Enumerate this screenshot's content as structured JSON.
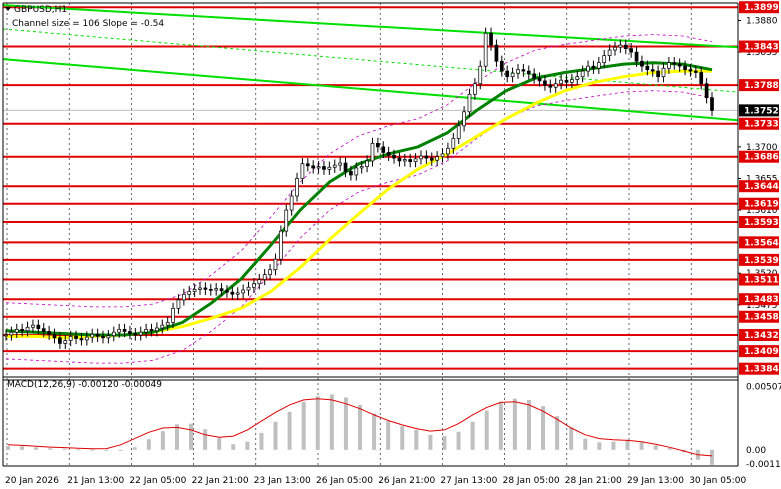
{
  "header": {
    "symbol": "GBPUSD,H1",
    "channel_info": "Channel size = 106 Slope = -0.54",
    "macd_label": "MACD(12,26,9) -0.00120 -0.00049"
  },
  "colors": {
    "background": "#ffffff",
    "level_line": "#e00000",
    "badge_bg": "#e00000",
    "channel": "#00e000",
    "ma_fast": "#008000",
    "ma_slow": "#ffff00",
    "bollinger": "#c000c0",
    "candles": "#000000",
    "macd_hist": "#c0c0c0",
    "macd_signal": "#e00000",
    "current_price_badge": "#000000"
  },
  "chart_data": {
    "type": "candlestick",
    "symbol": "GBPUSD",
    "timeframe": "H1",
    "ylim": [
      1.3375,
      1.3905
    ],
    "y_ticks": [
      "1.3880",
      "1.3835",
      "1.3700",
      "1.3655",
      "1.3610",
      "1.3520",
      "1.3475"
    ],
    "x_ticks": [
      "20 Jan 2026",
      "21 Jan 13:00",
      "22 Jan 05:00",
      "22 Jan 21:00",
      "23 Jan 13:00",
      "26 Jan 05:00",
      "26 Jan 21:00",
      "27 Jan 13:00",
      "28 Jan 05:00",
      "28 Jan 21:00",
      "29 Jan 13:00",
      "30 Jan 05:00"
    ],
    "levels": [
      1.3899,
      1.3843,
      1.3788,
      1.3733,
      1.3686,
      1.3644,
      1.3619,
      1.3593,
      1.3564,
      1.3539,
      1.3511,
      1.3483,
      1.3458,
      1.3432,
      1.3409,
      1.3384
    ],
    "current_price": 1.3752,
    "candles_close": [
      1.3432,
      1.3436,
      1.344,
      1.3438,
      1.3443,
      1.3446,
      1.3441,
      1.3437,
      1.3433,
      1.3428,
      1.342,
      1.3424,
      1.343,
      1.3427,
      1.3425,
      1.3429,
      1.3433,
      1.343,
      1.3428,
      1.3431,
      1.3436,
      1.344,
      1.3437,
      1.3434,
      1.3432,
      1.3436,
      1.344,
      1.3438,
      1.3442,
      1.3446,
      1.345,
      1.347,
      1.3482,
      1.349,
      1.3494,
      1.3497,
      1.3499,
      1.3497,
      1.3496,
      1.3498,
      1.3495,
      1.3493,
      1.349,
      1.3492,
      1.3496,
      1.35,
      1.3505,
      1.3511,
      1.3518,
      1.3525,
      1.354,
      1.358,
      1.361,
      1.363,
      1.3655,
      1.3676,
      1.3673,
      1.367,
      1.3672,
      1.3668,
      1.3671,
      1.3674,
      1.3677,
      1.3665,
      1.366,
      1.367,
      1.3672,
      1.368,
      1.3705,
      1.37,
      1.3692,
      1.3688,
      1.3684,
      1.368,
      1.3682,
      1.3679,
      1.3683,
      1.3687,
      1.3684,
      1.3681,
      1.3686,
      1.369,
      1.3698,
      1.3712,
      1.373,
      1.375,
      1.3775,
      1.379,
      1.3815,
      1.3862,
      1.3845,
      1.3822,
      1.3808,
      1.38,
      1.3805,
      1.381,
      1.3808,
      1.3804,
      1.3798,
      1.3794,
      1.3788,
      1.3785,
      1.379,
      1.3795,
      1.3792,
      1.3796,
      1.38,
      1.3808,
      1.3815,
      1.3812,
      1.382,
      1.383,
      1.3838,
      1.3842,
      1.3845,
      1.384,
      1.3835,
      1.3822,
      1.3815,
      1.381,
      1.3808,
      1.38,
      1.3812,
      1.382,
      1.3818,
      1.3815,
      1.381,
      1.3808,
      1.3806,
      1.379,
      1.377,
      1.3752
    ],
    "ma_fast": [
      1.3438,
      1.3436,
      1.3434,
      1.3432,
      1.3432,
      1.3436,
      1.345,
      1.3478,
      1.3512,
      1.356,
      1.361,
      1.365,
      1.3676,
      1.369,
      1.37,
      1.372,
      1.3752,
      1.378,
      1.3798,
      1.3806,
      1.3812,
      1.3818,
      1.382,
      1.3818,
      1.381
    ],
    "ma_slow": [
      1.343,
      1.343,
      1.3428,
      1.343,
      1.3432,
      1.3436,
      1.3444,
      1.3456,
      1.347,
      1.3494,
      1.3528,
      1.3568,
      1.3605,
      1.364,
      1.3668,
      1.369,
      1.3715,
      1.374,
      1.3762,
      1.378,
      1.3792,
      1.38,
      1.3806,
      1.3808,
      1.3808
    ],
    "channel_lines": [
      {
        "from": [
          0,
          1.3902
        ],
        "to": [
          1,
          1.3842
        ]
      },
      {
        "from": [
          0,
          1.3825
        ],
        "to": [
          1,
          1.3738
        ]
      },
      {
        "from": [
          0,
          1.3868
        ],
        "to": [
          1,
          1.3778
        ]
      }
    ],
    "macd": {
      "y_ticks": [
        "0.00507",
        "0.00",
        "-0.00115"
      ],
      "ylim": [
        -0.0013,
        0.0056
      ],
      "histogram": [
        0.0003,
        0.00028,
        0.0002,
        0.00012,
        8e-05,
        4e-05,
        2e-05,
        0.0,
        -5e-05,
        0.0002,
        0.00085,
        0.0015,
        0.00205,
        0.0021,
        0.00165,
        0.00095,
        0.00045,
        0.00065,
        0.00135,
        0.00225,
        0.00305,
        0.00385,
        0.0043,
        0.00445,
        0.0042,
        0.0036,
        0.0029,
        0.0023,
        0.0019,
        0.0016,
        0.0012,
        0.0011,
        0.00145,
        0.00225,
        0.00315,
        0.00385,
        0.0041,
        0.004,
        0.0035,
        0.0027,
        0.0018,
        0.0009,
        0.0006,
        0.00065,
        0.0008,
        0.0006,
        0.00035,
        0.00015,
        -0.0002,
        -0.0008,
        -0.0012
      ],
      "signal": [
        0.0004,
        0.00035,
        0.00028,
        0.00022,
        0.00018,
        0.00012,
        8e-05,
        0.0001,
        0.0004,
        0.0009,
        0.0014,
        0.00175,
        0.0018,
        0.0016,
        0.0012,
        0.001,
        0.0011,
        0.0016,
        0.0023,
        0.003,
        0.0036,
        0.004,
        0.0041,
        0.004,
        0.0037,
        0.0033,
        0.0028,
        0.00235,
        0.002,
        0.0017,
        0.0015,
        0.0016,
        0.0021,
        0.0028,
        0.0034,
        0.0038,
        0.00385,
        0.0036,
        0.0031,
        0.00245,
        0.00175,
        0.0012,
        0.0009,
        0.0008,
        0.00075,
        0.00065,
        0.00045,
        0.0002,
        -0.0001,
        -0.0004,
        -0.00049
      ]
    }
  }
}
